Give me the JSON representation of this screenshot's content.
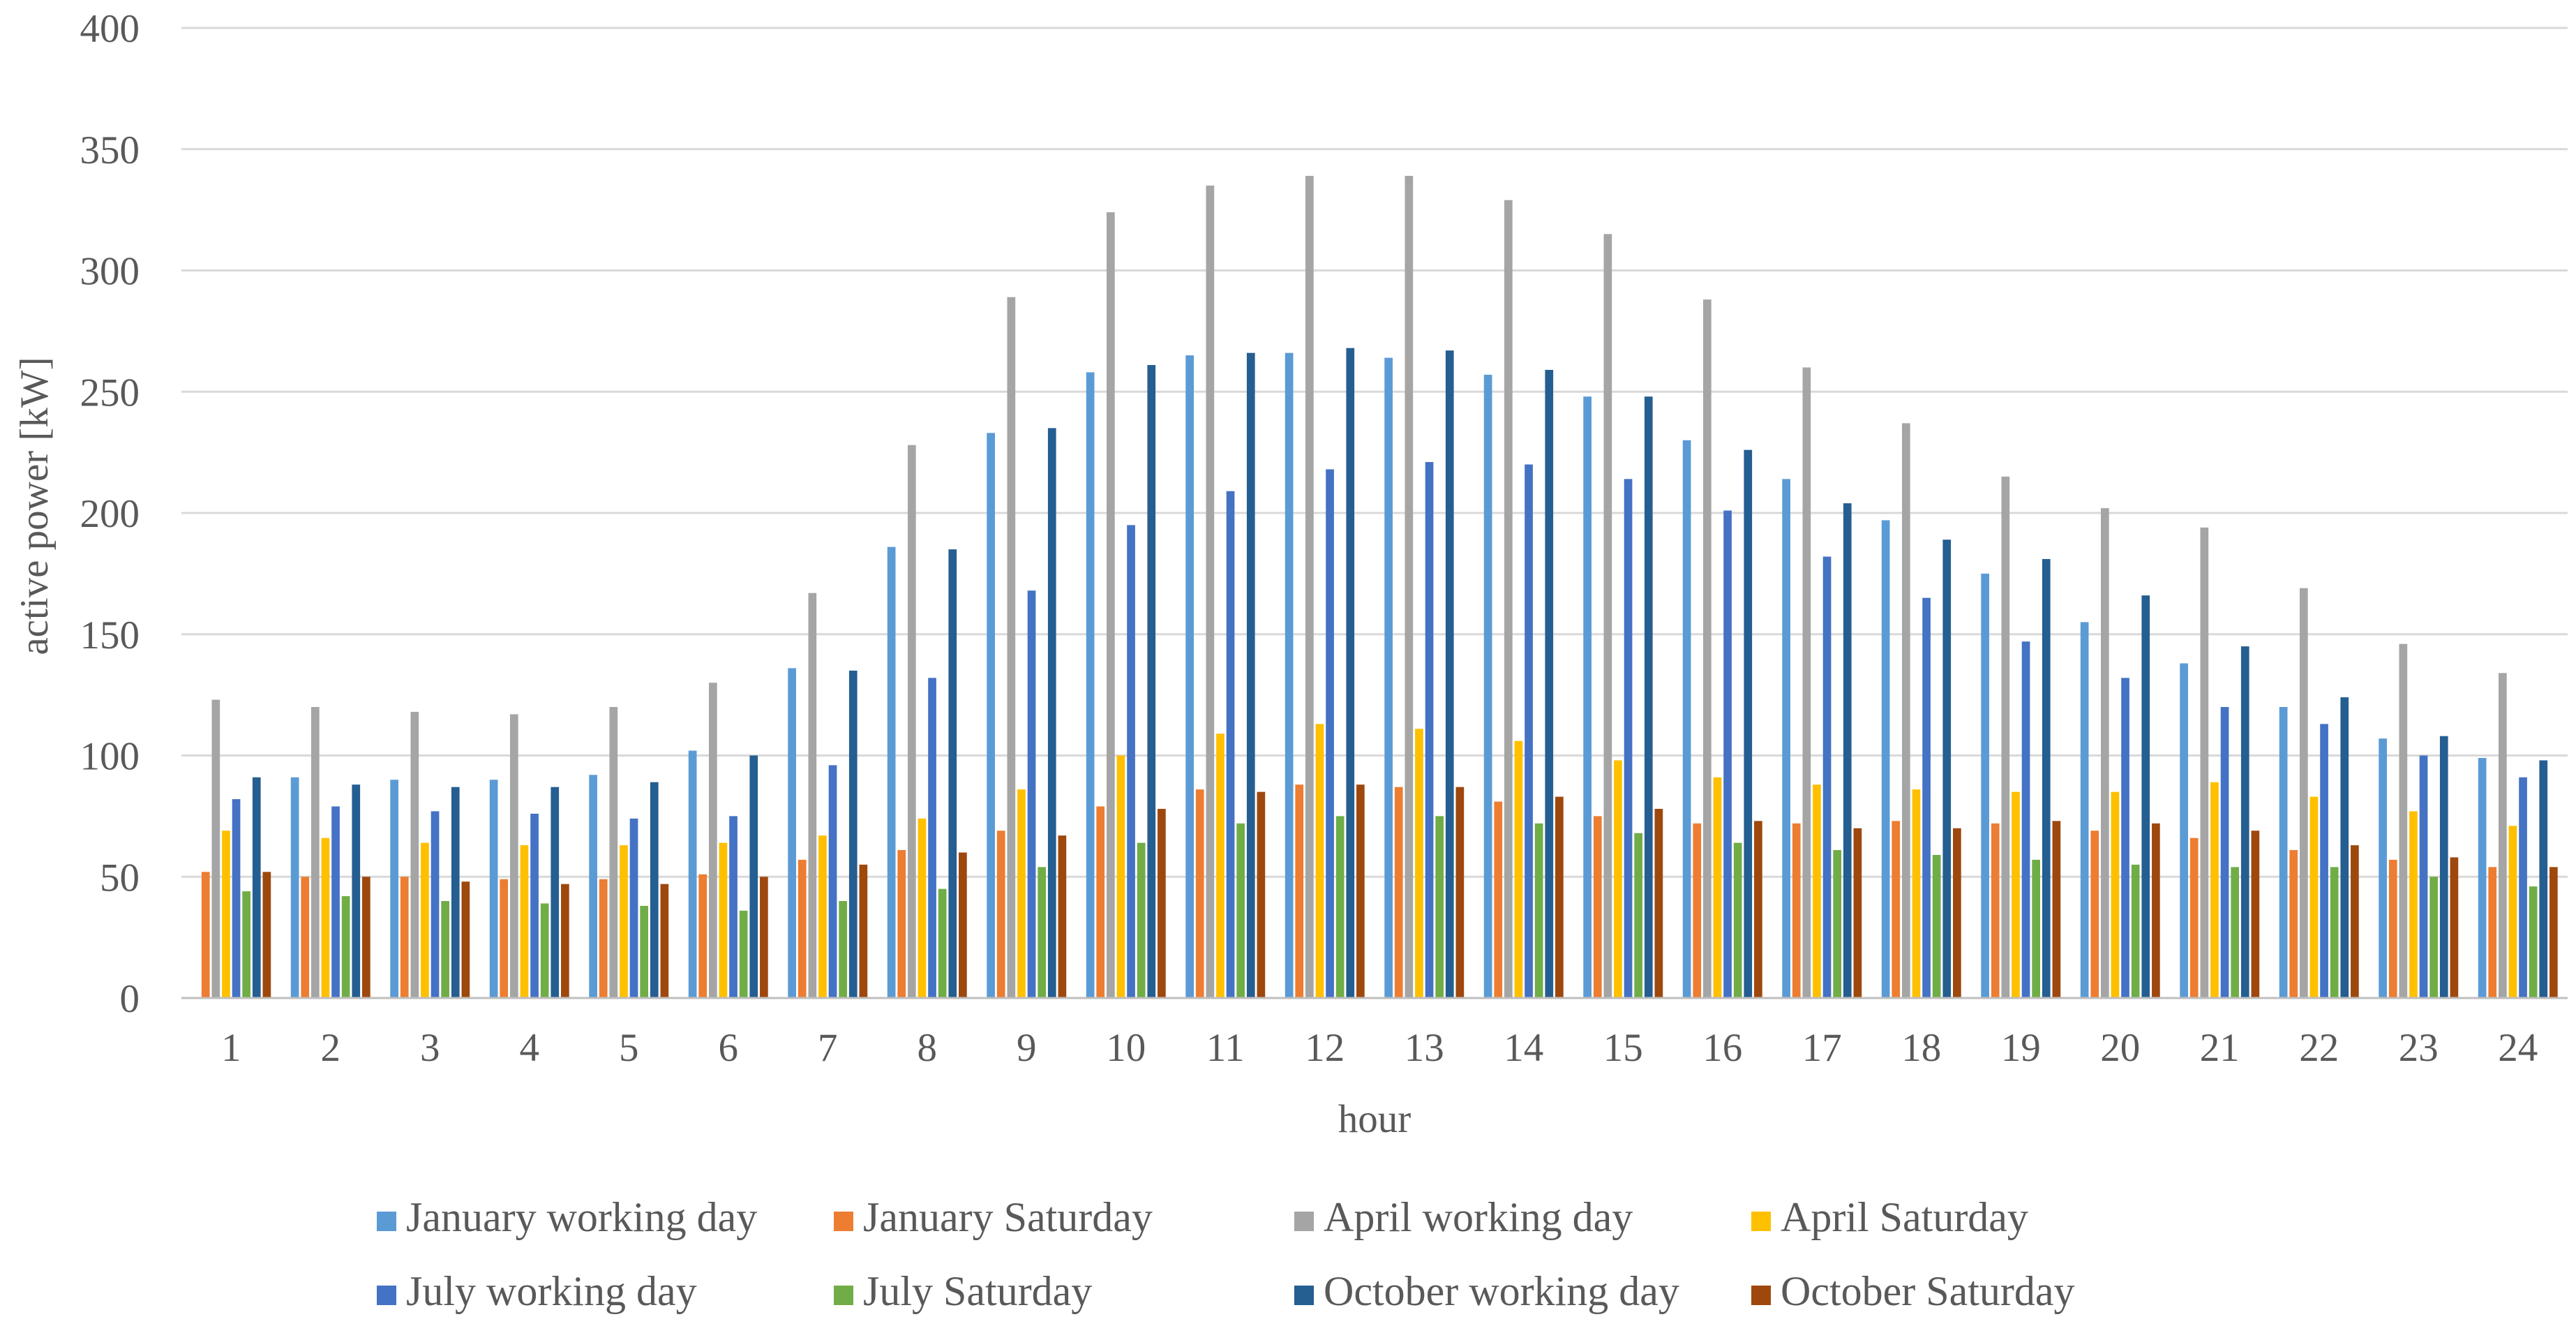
{
  "chart_data": {
    "type": "bar",
    "title": "",
    "xlabel": "hour",
    "ylabel": "active power [kW]",
    "ylim": [
      0,
      400
    ],
    "yticks": [
      0,
      50,
      100,
      150,
      200,
      250,
      300,
      350,
      400
    ],
    "grid": true,
    "legend_position": "bottom",
    "categories": [
      "1",
      "2",
      "3",
      "4",
      "5",
      "6",
      "7",
      "8",
      "9",
      "10",
      "11",
      "12",
      "13",
      "14",
      "15",
      "16",
      "17",
      "18",
      "19",
      "20",
      "21",
      "22",
      "23",
      "24"
    ],
    "series": [
      {
        "name": "January working day",
        "color": "#5B9BD5",
        "values": [
          0,
          91,
          90,
          90,
          92,
          102,
          136,
          186,
          233,
          258,
          265,
          266,
          264,
          257,
          248,
          230,
          214,
          197,
          175,
          155,
          138,
          120,
          107,
          99
        ]
      },
      {
        "name": "January Saturday",
        "color": "#ED7D31",
        "values": [
          52,
          50,
          50,
          49,
          49,
          51,
          57,
          61,
          69,
          79,
          86,
          88,
          87,
          81,
          75,
          72,
          72,
          73,
          72,
          69,
          66,
          61,
          57,
          54
        ]
      },
      {
        "name": "April working day",
        "color": "#A5A5A5",
        "values": [
          123,
          120,
          118,
          117,
          120,
          130,
          167,
          228,
          289,
          324,
          335,
          339,
          339,
          329,
          315,
          288,
          260,
          237,
          215,
          202,
          194,
          169,
          146,
          134
        ]
      },
      {
        "name": "April Saturday",
        "color": "#FFC000",
        "values": [
          69,
          66,
          64,
          63,
          63,
          64,
          67,
          74,
          86,
          100,
          109,
          113,
          111,
          106,
          98,
          91,
          88,
          86,
          85,
          85,
          89,
          83,
          77,
          71
        ]
      },
      {
        "name": "July working day",
        "color": "#4472C4",
        "values": [
          82,
          79,
          77,
          76,
          74,
          75,
          96,
          132,
          168,
          195,
          209,
          218,
          221,
          220,
          214,
          201,
          182,
          165,
          147,
          132,
          120,
          113,
          100,
          91
        ]
      },
      {
        "name": "July Saturday",
        "color": "#70AD47",
        "values": [
          44,
          42,
          40,
          39,
          38,
          36,
          40,
          45,
          54,
          64,
          72,
          75,
          75,
          72,
          68,
          64,
          61,
          59,
          57,
          55,
          54,
          54,
          50,
          46
        ]
      },
      {
        "name": "October working day",
        "color": "#255E91",
        "values": [
          91,
          88,
          87,
          87,
          89,
          100,
          135,
          185,
          235,
          261,
          266,
          268,
          267,
          259,
          248,
          226,
          204,
          189,
          181,
          166,
          145,
          124,
          108,
          98
        ]
      },
      {
        "name": "October Saturday",
        "color": "#9E480E",
        "values": [
          52,
          50,
          48,
          47,
          47,
          50,
          55,
          60,
          67,
          78,
          85,
          88,
          87,
          83,
          78,
          73,
          70,
          70,
          73,
          72,
          69,
          63,
          58,
          54
        ]
      }
    ]
  },
  "colors": {
    "gridline": "#D9D9D9",
    "axis_line": "#BFBFBF",
    "text": "#595959"
  }
}
